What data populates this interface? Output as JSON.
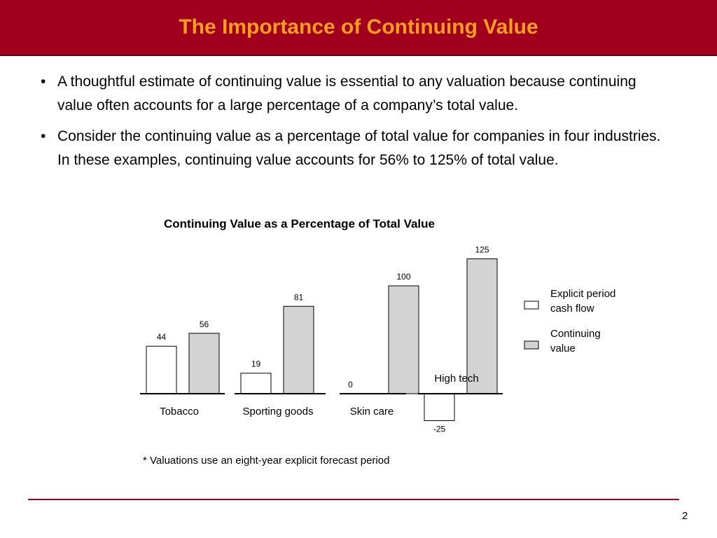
{
  "slide": {
    "title": "The Importance of Continuing Value",
    "bullets": [
      "A thoughtful estimate of continuing value is essential to any valuation because continuing value often accounts for a large percentage of a company’s total value.",
      "Consider the continuing value as a percentage of total value for companies in four industries.  In these examples, continuing value accounts for 56% to 125% of total value."
    ],
    "footnote": "* Valuations use an eight-year explicit forecast period",
    "page_number": "2",
    "colors": {
      "title_bar": "#a0001e",
      "title_text": "#ff9e1f"
    }
  },
  "chart_data": {
    "type": "bar",
    "title": "Continuing Value as a Percentage of Total Value",
    "categories": [
      "Tobacco",
      "Sporting goods",
      "Skin care",
      "High tech"
    ],
    "series": [
      {
        "name": "Explicit period cash flow",
        "values": [
          44,
          19,
          0,
          -25
        ],
        "labels": [
          "44",
          "19",
          "0",
          "-25"
        ],
        "color": "#ffffff"
      },
      {
        "name": "Continuing value",
        "values": [
          56,
          81,
          100,
          125
        ],
        "labels": [
          "56",
          "81",
          "100",
          "125"
        ],
        "color": "#d3d3d3"
      }
    ],
    "legend": {
      "position": "right",
      "entries": [
        "Explicit period\ncash flow",
        "Continuing\nvalue"
      ]
    },
    "ylim": [
      -25,
      125
    ],
    "grid": false
  }
}
